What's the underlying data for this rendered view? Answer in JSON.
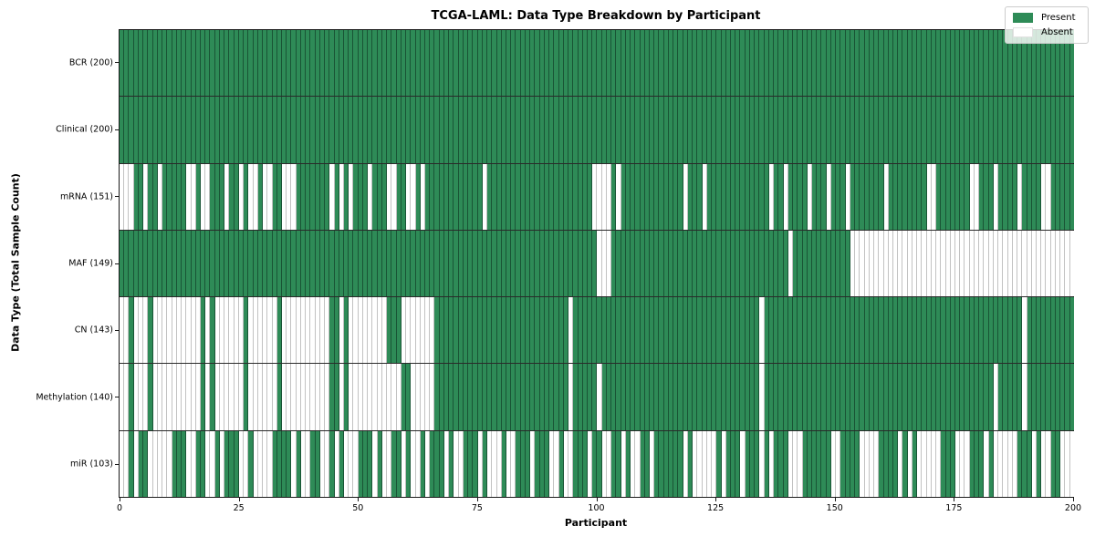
{
  "chart_data": {
    "type": "heatmap",
    "title": "TCGA-LAML: Data Type Breakdown by Participant",
    "xlabel": "Participant",
    "ylabel": "Data Type (Total Sample Count)",
    "x_range": [
      0,
      200
    ],
    "x_ticks": [
      0,
      25,
      50,
      75,
      100,
      125,
      150,
      175,
      200
    ],
    "n_participants": 200,
    "grid": false,
    "legend_position": "upper right",
    "legend_labels": [
      "Present",
      "Absent"
    ],
    "colors": {
      "present": "#2e8b57",
      "absent": "#ffffff"
    },
    "rows": [
      {
        "name": "BCR",
        "label": "BCR (200)",
        "present_count": 200,
        "present_ranges": [
          [
            0,
            199
          ]
        ]
      },
      {
        "name": "Clinical",
        "label": "Clinical (200)",
        "present_count": 200,
        "present_ranges": [
          [
            0,
            199
          ]
        ]
      },
      {
        "name": "mRNA",
        "label": "mRNA (151)",
        "present_count": 151,
        "present_ranges": [
          [
            3,
            4
          ],
          [
            6,
            7
          ],
          [
            9,
            13
          ],
          [
            16,
            16
          ],
          [
            19,
            21
          ],
          [
            23,
            24
          ],
          [
            26,
            26
          ],
          [
            29,
            29
          ],
          [
            32,
            33
          ],
          [
            37,
            43
          ],
          [
            45,
            45
          ],
          [
            47,
            47
          ],
          [
            49,
            51
          ],
          [
            53,
            55
          ],
          [
            58,
            59
          ],
          [
            62,
            62
          ],
          [
            64,
            75
          ],
          [
            77,
            98
          ],
          [
            103,
            103
          ],
          [
            105,
            117
          ],
          [
            119,
            121
          ],
          [
            123,
            135
          ],
          [
            137,
            138
          ],
          [
            140,
            143
          ],
          [
            145,
            147
          ],
          [
            149,
            151
          ],
          [
            153,
            159
          ],
          [
            161,
            168
          ],
          [
            171,
            177
          ],
          [
            180,
            182
          ],
          [
            184,
            187
          ],
          [
            189,
            192
          ],
          [
            195,
            199
          ]
        ]
      },
      {
        "name": "MAF",
        "label": "MAF (149)",
        "present_count": 149,
        "present_ranges": [
          [
            0,
            99
          ],
          [
            103,
            139
          ],
          [
            141,
            152
          ]
        ]
      },
      {
        "name": "CN",
        "label": "CN (143)",
        "present_count": 143,
        "present_ranges": [
          [
            2,
            2
          ],
          [
            6,
            6
          ],
          [
            17,
            17
          ],
          [
            19,
            19
          ],
          [
            26,
            26
          ],
          [
            33,
            33
          ],
          [
            44,
            45
          ],
          [
            47,
            47
          ],
          [
            56,
            58
          ],
          [
            66,
            93
          ],
          [
            95,
            133
          ],
          [
            135,
            188
          ],
          [
            190,
            199
          ]
        ]
      },
      {
        "name": "Methylation",
        "label": "Methylation (140)",
        "present_count": 140,
        "present_ranges": [
          [
            2,
            2
          ],
          [
            6,
            6
          ],
          [
            17,
            17
          ],
          [
            19,
            19
          ],
          [
            26,
            26
          ],
          [
            33,
            33
          ],
          [
            44,
            45
          ],
          [
            47,
            47
          ],
          [
            59,
            60
          ],
          [
            66,
            93
          ],
          [
            95,
            99
          ],
          [
            101,
            133
          ],
          [
            135,
            182
          ],
          [
            184,
            188
          ],
          [
            190,
            199
          ]
        ]
      },
      {
        "name": "miR",
        "label": "miR (103)",
        "present_count": 103,
        "present_ranges": [
          [
            2,
            2
          ],
          [
            4,
            5
          ],
          [
            11,
            13
          ],
          [
            16,
            17
          ],
          [
            20,
            20
          ],
          [
            22,
            24
          ],
          [
            27,
            27
          ],
          [
            32,
            35
          ],
          [
            37,
            37
          ],
          [
            40,
            41
          ],
          [
            44,
            44
          ],
          [
            46,
            46
          ],
          [
            50,
            52
          ],
          [
            54,
            54
          ],
          [
            57,
            58
          ],
          [
            60,
            60
          ],
          [
            63,
            63
          ],
          [
            65,
            67
          ],
          [
            69,
            69
          ],
          [
            72,
            74
          ],
          [
            76,
            76
          ],
          [
            80,
            80
          ],
          [
            83,
            85
          ],
          [
            87,
            89
          ],
          [
            92,
            92
          ],
          [
            95,
            97
          ],
          [
            99,
            100
          ],
          [
            103,
            104
          ],
          [
            106,
            106
          ],
          [
            109,
            110
          ],
          [
            112,
            117
          ],
          [
            119,
            119
          ],
          [
            125,
            125
          ],
          [
            127,
            129
          ],
          [
            131,
            133
          ],
          [
            135,
            135
          ],
          [
            137,
            139
          ],
          [
            143,
            148
          ],
          [
            151,
            154
          ],
          [
            159,
            162
          ],
          [
            164,
            164
          ],
          [
            166,
            166
          ],
          [
            172,
            174
          ],
          [
            178,
            180
          ],
          [
            182,
            182
          ],
          [
            188,
            190
          ],
          [
            192,
            192
          ],
          [
            195,
            196
          ]
        ]
      }
    ]
  }
}
